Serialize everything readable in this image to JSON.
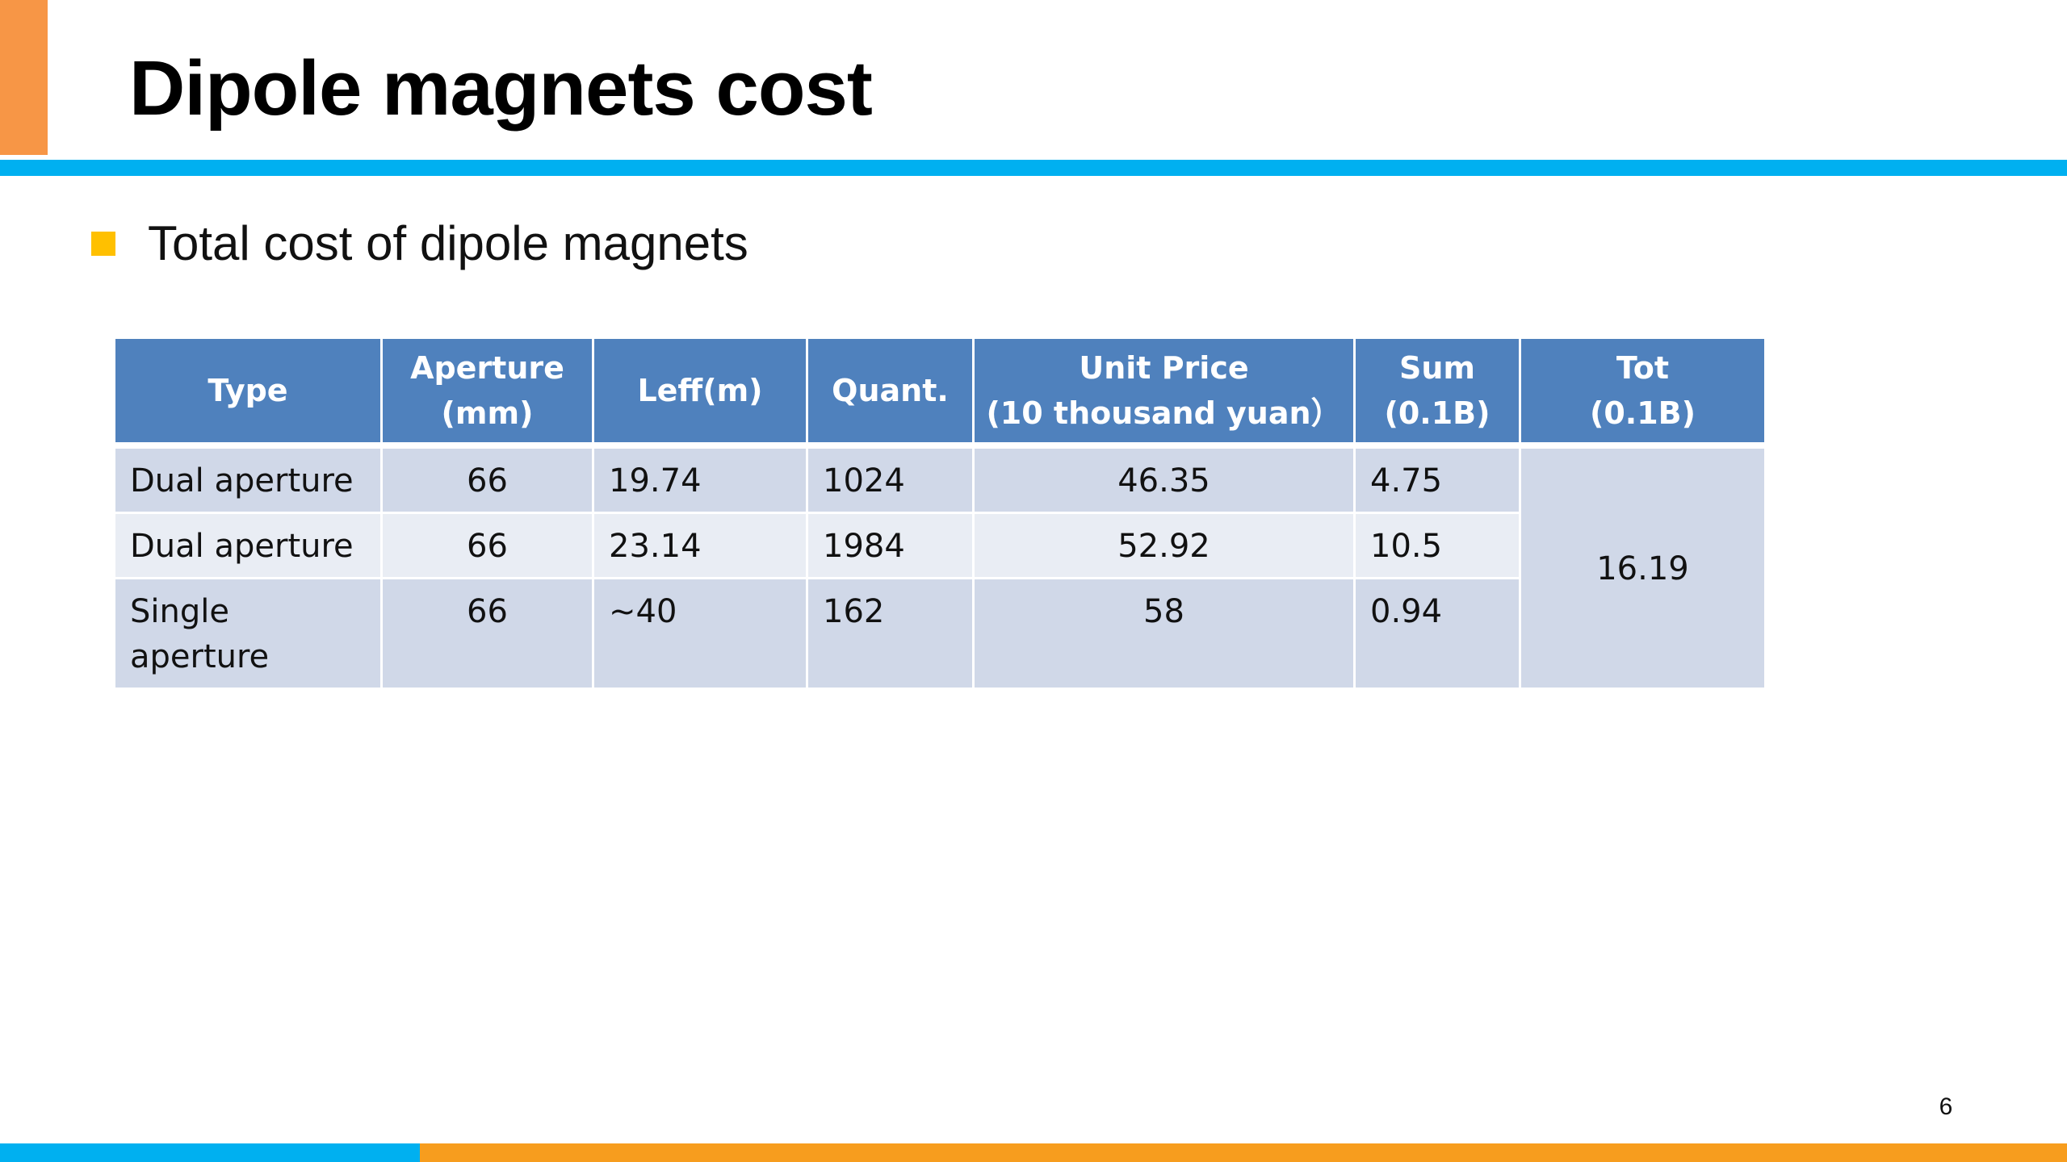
{
  "slide": {
    "title": "Dipole magnets cost",
    "bullet": "Total cost of dipole magnets",
    "page_number": "6"
  },
  "colors": {
    "accent_orange": "#f79646",
    "rule_blue": "#00b0f0",
    "bullet_yellow": "#ffc000",
    "header_blue": "#4f81bd",
    "row_dark": "#d0d8e8",
    "row_light": "#e9edf4",
    "footer_orange": "#f79d1e"
  },
  "table": {
    "headers": {
      "type": "Type",
      "aperture_line1": "Aperture",
      "aperture_line2": "(mm)",
      "leff": "Leff(m)",
      "quant": "Quant.",
      "unit_price_line1": "Unit Price",
      "unit_price_line2": "(10 thousand yuan）",
      "sum_line1": "Sum",
      "sum_line2": "(0.1B)",
      "tot_line1": "Tot",
      "tot_line2": "(0.1B)"
    },
    "rows": [
      {
        "type": "Dual aperture",
        "aperture": "66",
        "leff": "19.74",
        "quant": "1024",
        "unit_price": "46.35",
        "sum": "4.75"
      },
      {
        "type": "Dual aperture",
        "aperture": "66",
        "leff": "23.14",
        "quant": "1984",
        "unit_price": "52.92",
        "sum": "10.5"
      },
      {
        "type": "Single aperture",
        "aperture": "66",
        "leff": "~40",
        "quant": "162",
        "unit_price": "58",
        "sum": "0.94"
      }
    ],
    "total": "16.19"
  }
}
